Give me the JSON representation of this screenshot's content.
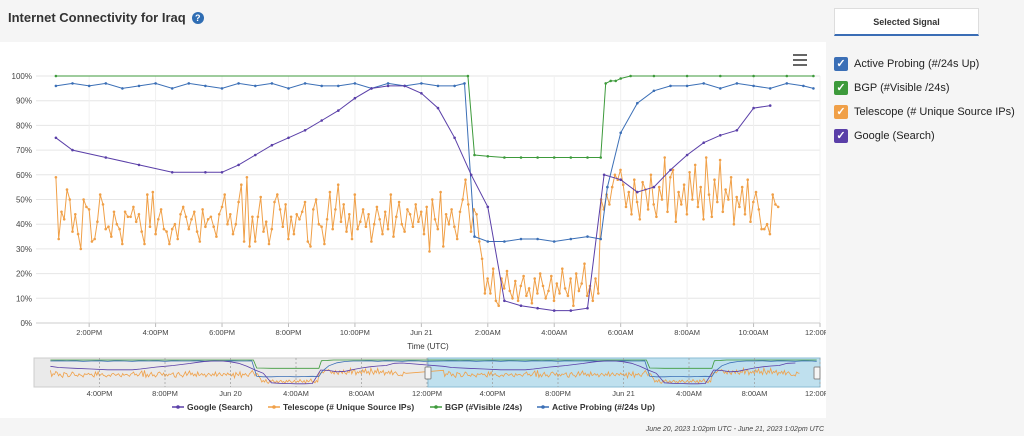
{
  "page": {
    "title": "Internet Connectivity for Iraq",
    "help_icon": "?",
    "date_range": "June 20, 2023 1:02pm UTC - June 21, 2023 1:02pm UTC",
    "selected_signal_tab": "Selected Signal"
  },
  "side_legend": [
    {
      "label": "Active Probing (#/24s Up)",
      "color": "#3b6fb6",
      "checked": true
    },
    {
      "label": "BGP (#Visible /24s)",
      "color": "#3d9a3b",
      "checked": true
    },
    {
      "label": "Telescope (# Unique Source IPs)",
      "color": "#f0a048",
      "checked": true
    },
    {
      "label": "Google (Search)",
      "color": "#5a3fa8",
      "checked": true
    }
  ],
  "chart_data": {
    "type": "line",
    "title": "",
    "xlabel": "Time (UTC)",
    "ylabel": "",
    "ylim": [
      0,
      100
    ],
    "y_ticks": [
      "0%",
      "10%",
      "20%",
      "30%",
      "40%",
      "50%",
      "60%",
      "70%",
      "80%",
      "90%",
      "100%"
    ],
    "x_ticks": [
      "2:00PM",
      "4:00PM",
      "6:00PM",
      "8:00PM",
      "10:00PM",
      "Jun 21",
      "2:00AM",
      "4:00AM",
      "6:00AM",
      "8:00AM",
      "10:00AM",
      "12:00PM"
    ],
    "navigator_ticks": [
      "4:00PM",
      "8:00PM",
      "Jun 20",
      "4:00AM",
      "8:00AM",
      "12:00PM",
      "4:00PM",
      "8:00PM",
      "Jun 21",
      "4:00AM",
      "8:00AM",
      "12:00PM"
    ],
    "x_unit": "hours since 12:00PM Jun 20",
    "series": [
      {
        "name": "Google (Search)",
        "color": "#5a3fa8",
        "x": [
          1.0,
          1.5,
          2.5,
          3.5,
          4.5,
          5.5,
          6.0,
          6.5,
          7.0,
          7.5,
          8.0,
          8.5,
          9.0,
          9.5,
          10.0,
          10.5,
          11.0,
          11.5,
          12.0,
          12.5,
          13.0,
          13.5,
          14.0,
          14.5,
          15.0,
          15.5,
          16.0,
          16.5,
          17.0,
          17.5,
          18.0,
          18.5,
          19.0,
          19.5,
          20.0,
          20.5,
          21.0,
          21.5,
          22.0,
          22.5
        ],
        "values": [
          75,
          70,
          67,
          64,
          61,
          61,
          61,
          64,
          68,
          72,
          75,
          78,
          82,
          86,
          91,
          95,
          96,
          96,
          93,
          87,
          75,
          60,
          47,
          9,
          7,
          6,
          5,
          5,
          6,
          60,
          58,
          53,
          55,
          62,
          68,
          73,
          76,
          78,
          87,
          88
        ]
      },
      {
        "name": "Telescope (# Unique Source IPs)",
        "color": "#f0a048",
        "x_start": 1.0,
        "x_step": 0.0833,
        "values": [
          59,
          34,
          45,
          42,
          54,
          50,
          37,
          44,
          36,
          30,
          50,
          47,
          46,
          33,
          34,
          41,
          52,
          48,
          38,
          39,
          35,
          45,
          40,
          38,
          32,
          45,
          43,
          43,
          47,
          41,
          44,
          37,
          32,
          52,
          39,
          53,
          36,
          42,
          46,
          38,
          37,
          32,
          38,
          40,
          34,
          44,
          47,
          43,
          38,
          42,
          45,
          37,
          33,
          46,
          39,
          42,
          43,
          39,
          35,
          44,
          47,
          52,
          40,
          44,
          36,
          40,
          49,
          56,
          33,
          59,
          31,
          43,
          33,
          43,
          51,
          37,
          41,
          32,
          38,
          49,
          52,
          46,
          39,
          48,
          34,
          43,
          36,
          44,
          42,
          45,
          49,
          33,
          31,
          46,
          50,
          40,
          39,
          32,
          42,
          53,
          38,
          46,
          56,
          41,
          48,
          37,
          44,
          34,
          52,
          38,
          41,
          46,
          39,
          44,
          33,
          40,
          47,
          42,
          36,
          45,
          38,
          52,
          35,
          43,
          49,
          40,
          37,
          46,
          44,
          39,
          48,
          41,
          45,
          36,
          47,
          29,
          50,
          42,
          38,
          53,
          31,
          44,
          40,
          46,
          39,
          34,
          45,
          50,
          58,
          48,
          37,
          46,
          44,
          33,
          26,
          12,
          18,
          12,
          22,
          9,
          7,
          18,
          14,
          21,
          13,
          10,
          17,
          9,
          15,
          19,
          11,
          14,
          8,
          18,
          12,
          20,
          15,
          10,
          13,
          19,
          9,
          16,
          12,
          22,
          14,
          11,
          18,
          7,
          20,
          13,
          16,
          24,
          11,
          15,
          9,
          18,
          12,
          50,
          46,
          52,
          48,
          55,
          60,
          58,
          62,
          56,
          47,
          53,
          44,
          58,
          49,
          42,
          57,
          54,
          46,
          60,
          48,
          43,
          55,
          50,
          67,
          45,
          59,
          62,
          41,
          53,
          48,
          56,
          44,
          61,
          50,
          64,
          47,
          55,
          42,
          67,
          52,
          43,
          58,
          49,
          66,
          45,
          54,
          50,
          59,
          40,
          51,
          47,
          55,
          44,
          58,
          41,
          49,
          53,
          46,
          38,
          38,
          40,
          36,
          52,
          48,
          47
        ]
      },
      {
        "name": "BGP (#Visible /24s)",
        "color": "#3d9a3b",
        "x": [
          1.0,
          13.4,
          13.6,
          14.0,
          14.5,
          15.0,
          15.5,
          16.0,
          16.5,
          17.0,
          17.4,
          17.55,
          17.7,
          17.85,
          18.0,
          18.3,
          19.0,
          20.0,
          21.0,
          22.0,
          23.0,
          23.8
        ],
        "values": [
          100,
          100,
          68,
          67.5,
          67,
          67,
          67,
          67,
          67,
          67,
          67,
          97,
          98,
          98,
          99,
          100,
          100,
          100,
          100,
          100,
          100,
          100
        ]
      },
      {
        "name": "Active Probing (#/24s Up)",
        "color": "#3b6fb6",
        "x": [
          1.0,
          1.5,
          2.0,
          2.5,
          3.0,
          3.5,
          4.0,
          4.5,
          5.0,
          5.5,
          6.0,
          6.5,
          7.0,
          7.5,
          8.0,
          8.5,
          9.0,
          9.5,
          10.0,
          10.5,
          11.0,
          11.5,
          12.0,
          12.5,
          13.0,
          13.3,
          13.6,
          14.0,
          14.5,
          15.0,
          15.5,
          16.0,
          16.5,
          17.0,
          17.4,
          17.6,
          18.0,
          18.5,
          19.0,
          19.5,
          20.0,
          20.5,
          21.0,
          21.5,
          22.0,
          22.5,
          23.0,
          23.5,
          23.8
        ],
        "values": [
          96,
          97,
          96,
          97,
          95,
          96,
          97,
          95,
          97,
          96,
          95,
          97,
          96,
          97,
          95,
          97,
          96,
          96,
          97,
          95,
          97,
          96,
          97,
          96,
          96,
          97,
          35,
          33,
          33,
          34,
          34,
          33,
          34,
          35,
          34,
          55,
          77,
          89,
          94,
          96,
          96,
          97,
          95,
          97,
          96,
          95,
          97,
          96,
          95
        ]
      }
    ],
    "bottom_legend": [
      "Google (Search)",
      "Telescope (# Unique Source IPs)",
      "BGP (#Visible /24s)",
      "Active Probing (#/24s Up)"
    ],
    "grid": true,
    "legend_position": "bottom"
  }
}
